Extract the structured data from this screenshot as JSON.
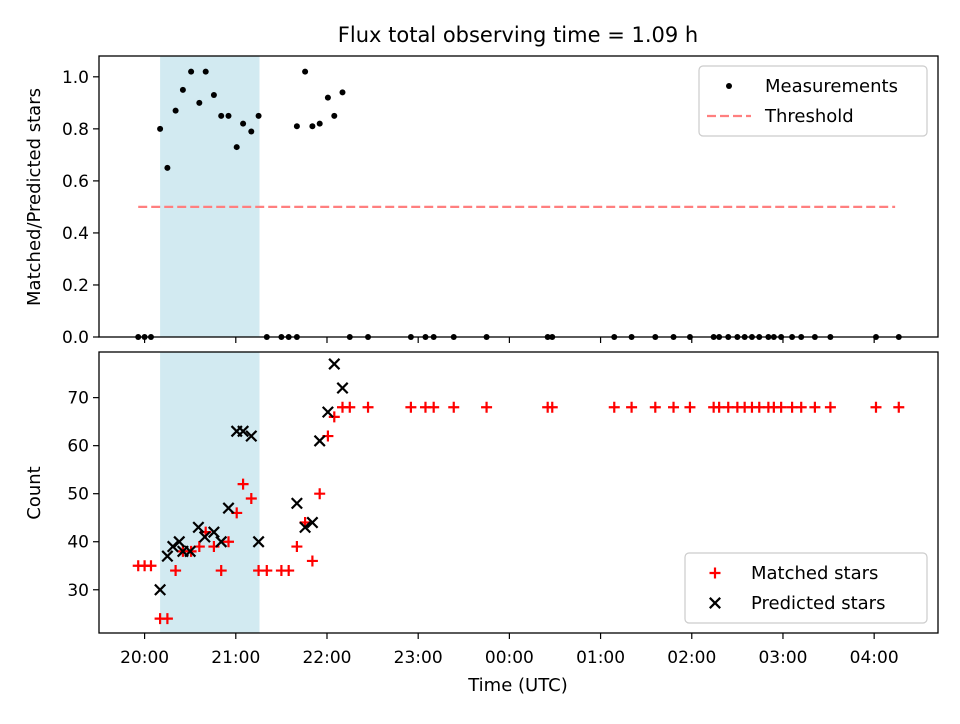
{
  "chart_data": {
    "title": "Flux total observing time = 1.09 h",
    "xlabel": "Time (UTC)",
    "x_unit": "hours after 20:00 UTC",
    "x_ticks": [
      {
        "v": 0,
        "label": "20:00"
      },
      {
        "v": 1,
        "label": "21:00"
      },
      {
        "v": 2,
        "label": "22:00"
      },
      {
        "v": 3,
        "label": "23:00"
      },
      {
        "v": 4,
        "label": "00:00"
      },
      {
        "v": 5,
        "label": "01:00"
      },
      {
        "v": 6,
        "label": "02:00"
      },
      {
        "v": 7,
        "label": "03:00"
      },
      {
        "v": 8,
        "label": "04:00"
      }
    ],
    "xlim": [
      -0.5,
      8.7
    ],
    "shaded_span": {
      "x0": 0.17,
      "x1": 1.26,
      "color": "#add8e6"
    },
    "panels": [
      {
        "type": "scatter",
        "ylabel": "Matched/Predicted stars",
        "ylim": [
          0,
          1.08
        ],
        "yticks": [
          {
            "v": 0,
            "label": "0.0"
          },
          {
            "v": 0.2,
            "label": "0.2"
          },
          {
            "v": 0.4,
            "label": "0.4"
          },
          {
            "v": 0.6,
            "label": "0.6"
          },
          {
            "v": 0.8,
            "label": "0.8"
          },
          {
            "v": 1.0,
            "label": "1.0"
          }
        ],
        "legend": {
          "position": "top-right",
          "entries": [
            {
              "label": "Measurements",
              "marker": "dot",
              "color": "#000000"
            },
            {
              "label": "Threshold",
              "marker": "dashed-line",
              "color": "#ff7f7f"
            }
          ]
        },
        "threshold": {
          "y": 0.5,
          "x0": -0.07,
          "x1": 8.23,
          "color": "#ff7f7f"
        },
        "measurements": [
          [
            -0.07,
            0
          ],
          [
            0.0,
            0
          ],
          [
            0.07,
            0
          ],
          [
            0.17,
            0.8
          ],
          [
            0.25,
            0.65
          ],
          [
            0.34,
            0.87
          ],
          [
            0.42,
            0.95
          ],
          [
            0.51,
            1.02
          ],
          [
            0.6,
            0.9
          ],
          [
            0.67,
            1.02
          ],
          [
            0.76,
            0.93
          ],
          [
            0.84,
            0.85
          ],
          [
            0.92,
            0.85
          ],
          [
            1.01,
            0.73
          ],
          [
            1.08,
            0.82
          ],
          [
            1.17,
            0.79
          ],
          [
            1.25,
            0.85
          ],
          [
            1.34,
            0
          ],
          [
            1.5,
            0
          ],
          [
            1.58,
            0
          ],
          [
            1.67,
            0
          ],
          [
            1.67,
            0.81
          ],
          [
            1.76,
            1.02
          ],
          [
            1.84,
            0.81
          ],
          [
            1.92,
            0.82
          ],
          [
            2.01,
            0.92
          ],
          [
            2.08,
            0.85
          ],
          [
            2.17,
            0.94
          ],
          [
            2.25,
            0
          ],
          [
            2.45,
            0
          ],
          [
            2.92,
            0
          ],
          [
            3.08,
            0
          ],
          [
            3.17,
            0
          ],
          [
            3.39,
            0
          ],
          [
            3.75,
            0
          ],
          [
            4.42,
            0
          ],
          [
            4.47,
            0
          ],
          [
            5.15,
            0
          ],
          [
            5.34,
            0
          ],
          [
            5.6,
            0
          ],
          [
            5.8,
            0
          ],
          [
            5.98,
            0
          ],
          [
            6.24,
            0
          ],
          [
            6.3,
            0
          ],
          [
            6.4,
            0
          ],
          [
            6.5,
            0
          ],
          [
            6.58,
            0
          ],
          [
            6.66,
            0
          ],
          [
            6.74,
            0
          ],
          [
            6.84,
            0
          ],
          [
            6.9,
            0
          ],
          [
            6.98,
            0
          ],
          [
            7.1,
            0
          ],
          [
            7.2,
            0
          ],
          [
            7.35,
            0
          ],
          [
            7.52,
            0
          ],
          [
            8.02,
            0
          ],
          [
            8.27,
            0
          ]
        ]
      },
      {
        "type": "scatter",
        "ylabel": "Count",
        "ylim": [
          21,
          79.5
        ],
        "yticks": [
          {
            "v": 30,
            "label": "30"
          },
          {
            "v": 40,
            "label": "40"
          },
          {
            "v": 50,
            "label": "50"
          },
          {
            "v": 60,
            "label": "60"
          },
          {
            "v": 70,
            "label": "70"
          }
        ],
        "legend": {
          "position": "bottom-right",
          "entries": [
            {
              "label": "Matched stars",
              "marker": "plus",
              "color": "#ff0000"
            },
            {
              "label": "Predicted stars",
              "marker": "x",
              "color": "#000000"
            }
          ]
        },
        "matched_stars": [
          [
            -0.07,
            35
          ],
          [
            0.0,
            35
          ],
          [
            0.07,
            35
          ],
          [
            0.17,
            24
          ],
          [
            0.25,
            24
          ],
          [
            0.34,
            34
          ],
          [
            0.42,
            38
          ],
          [
            0.51,
            38
          ],
          [
            0.6,
            39
          ],
          [
            0.67,
            42
          ],
          [
            0.76,
            39
          ],
          [
            0.84,
            34
          ],
          [
            0.92,
            40
          ],
          [
            1.01,
            46
          ],
          [
            1.08,
            52
          ],
          [
            1.17,
            49
          ],
          [
            1.25,
            34
          ],
          [
            1.34,
            34
          ],
          [
            1.5,
            34
          ],
          [
            1.58,
            34
          ],
          [
            1.67,
            39
          ],
          [
            1.76,
            44
          ],
          [
            1.84,
            36
          ],
          [
            1.92,
            50
          ],
          [
            2.01,
            62
          ],
          [
            2.08,
            66
          ],
          [
            2.17,
            68
          ],
          [
            2.25,
            68
          ],
          [
            2.45,
            68
          ],
          [
            2.92,
            68
          ],
          [
            3.08,
            68
          ],
          [
            3.17,
            68
          ],
          [
            3.39,
            68
          ],
          [
            3.75,
            68
          ],
          [
            4.42,
            68
          ],
          [
            4.47,
            68
          ],
          [
            5.15,
            68
          ],
          [
            5.34,
            68
          ],
          [
            5.6,
            68
          ],
          [
            5.8,
            68
          ],
          [
            5.98,
            68
          ],
          [
            6.24,
            68
          ],
          [
            6.3,
            68
          ],
          [
            6.4,
            68
          ],
          [
            6.5,
            68
          ],
          [
            6.58,
            68
          ],
          [
            6.66,
            68
          ],
          [
            6.74,
            68
          ],
          [
            6.84,
            68
          ],
          [
            6.9,
            68
          ],
          [
            6.98,
            68
          ],
          [
            7.1,
            68
          ],
          [
            7.2,
            68
          ],
          [
            7.35,
            68
          ],
          [
            7.52,
            68
          ],
          [
            8.02,
            68
          ],
          [
            8.27,
            68
          ]
        ],
        "predicted_stars": [
          [
            0.17,
            30
          ],
          [
            0.25,
            37
          ],
          [
            0.31,
            39
          ],
          [
            0.38,
            40
          ],
          [
            0.42,
            38
          ],
          [
            0.5,
            38
          ],
          [
            0.59,
            43
          ],
          [
            0.66,
            41
          ],
          [
            0.76,
            42
          ],
          [
            0.84,
            40
          ],
          [
            0.92,
            47
          ],
          [
            1.01,
            63
          ],
          [
            1.08,
            63
          ],
          [
            1.17,
            62
          ],
          [
            1.25,
            40
          ],
          [
            1.67,
            48
          ],
          [
            1.76,
            43
          ],
          [
            1.84,
            44
          ],
          [
            1.92,
            61
          ],
          [
            2.01,
            67
          ],
          [
            2.08,
            77
          ],
          [
            2.17,
            72
          ]
        ]
      }
    ]
  }
}
